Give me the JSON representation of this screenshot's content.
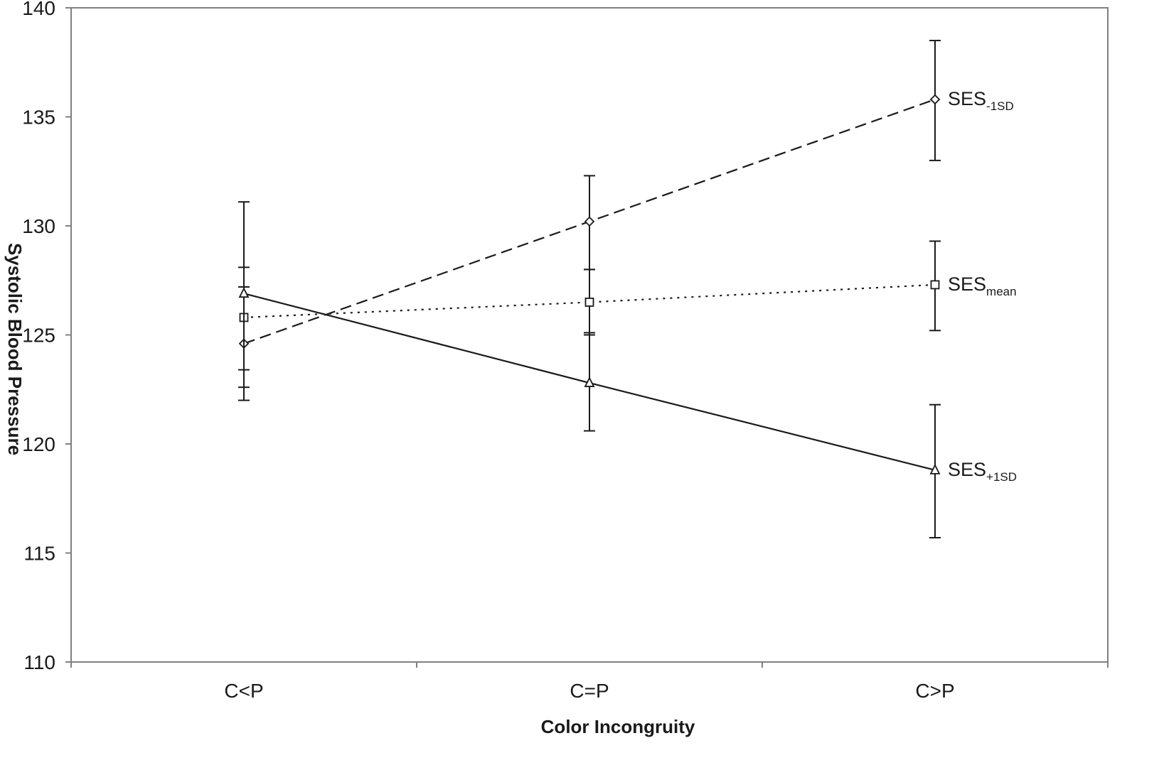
{
  "chart_data": {
    "type": "line",
    "title": "",
    "xlabel": "Color Incongruity",
    "ylabel": "Systolic Blood Pressure",
    "ylim": [
      110,
      140
    ],
    "yticks": [
      110,
      115,
      120,
      125,
      130,
      135,
      140
    ],
    "categories": [
      "C<P",
      "C=P",
      "C>P"
    ],
    "grid": false,
    "legend": "inline labels at right end of each line",
    "series": [
      {
        "name": "SES-1SD",
        "label_main": "SES",
        "label_sub": "-1SD",
        "marker": "diamond",
        "line_style": "dashed",
        "values": [
          124.6,
          130.2,
          135.8
        ],
        "error_low": [
          122.0,
          128.0,
          133.0
        ],
        "error_high": [
          128.1,
          132.3,
          138.5
        ]
      },
      {
        "name": "SESmean",
        "label_main": "SES",
        "label_sub": "mean",
        "marker": "square",
        "line_style": "dotted",
        "values": [
          125.8,
          126.5,
          127.3
        ],
        "error_low": [
          123.4,
          125.0,
          125.2
        ],
        "error_high": [
          127.2,
          128.0,
          129.3
        ]
      },
      {
        "name": "SES+1SD",
        "label_main": "SES",
        "label_sub": "+1SD",
        "marker": "triangle",
        "line_style": "solid",
        "values": [
          126.9,
          122.8,
          118.8
        ],
        "error_low": [
          122.6,
          120.6,
          115.7
        ],
        "error_high": [
          131.1,
          125.1,
          121.8
        ]
      }
    ]
  }
}
